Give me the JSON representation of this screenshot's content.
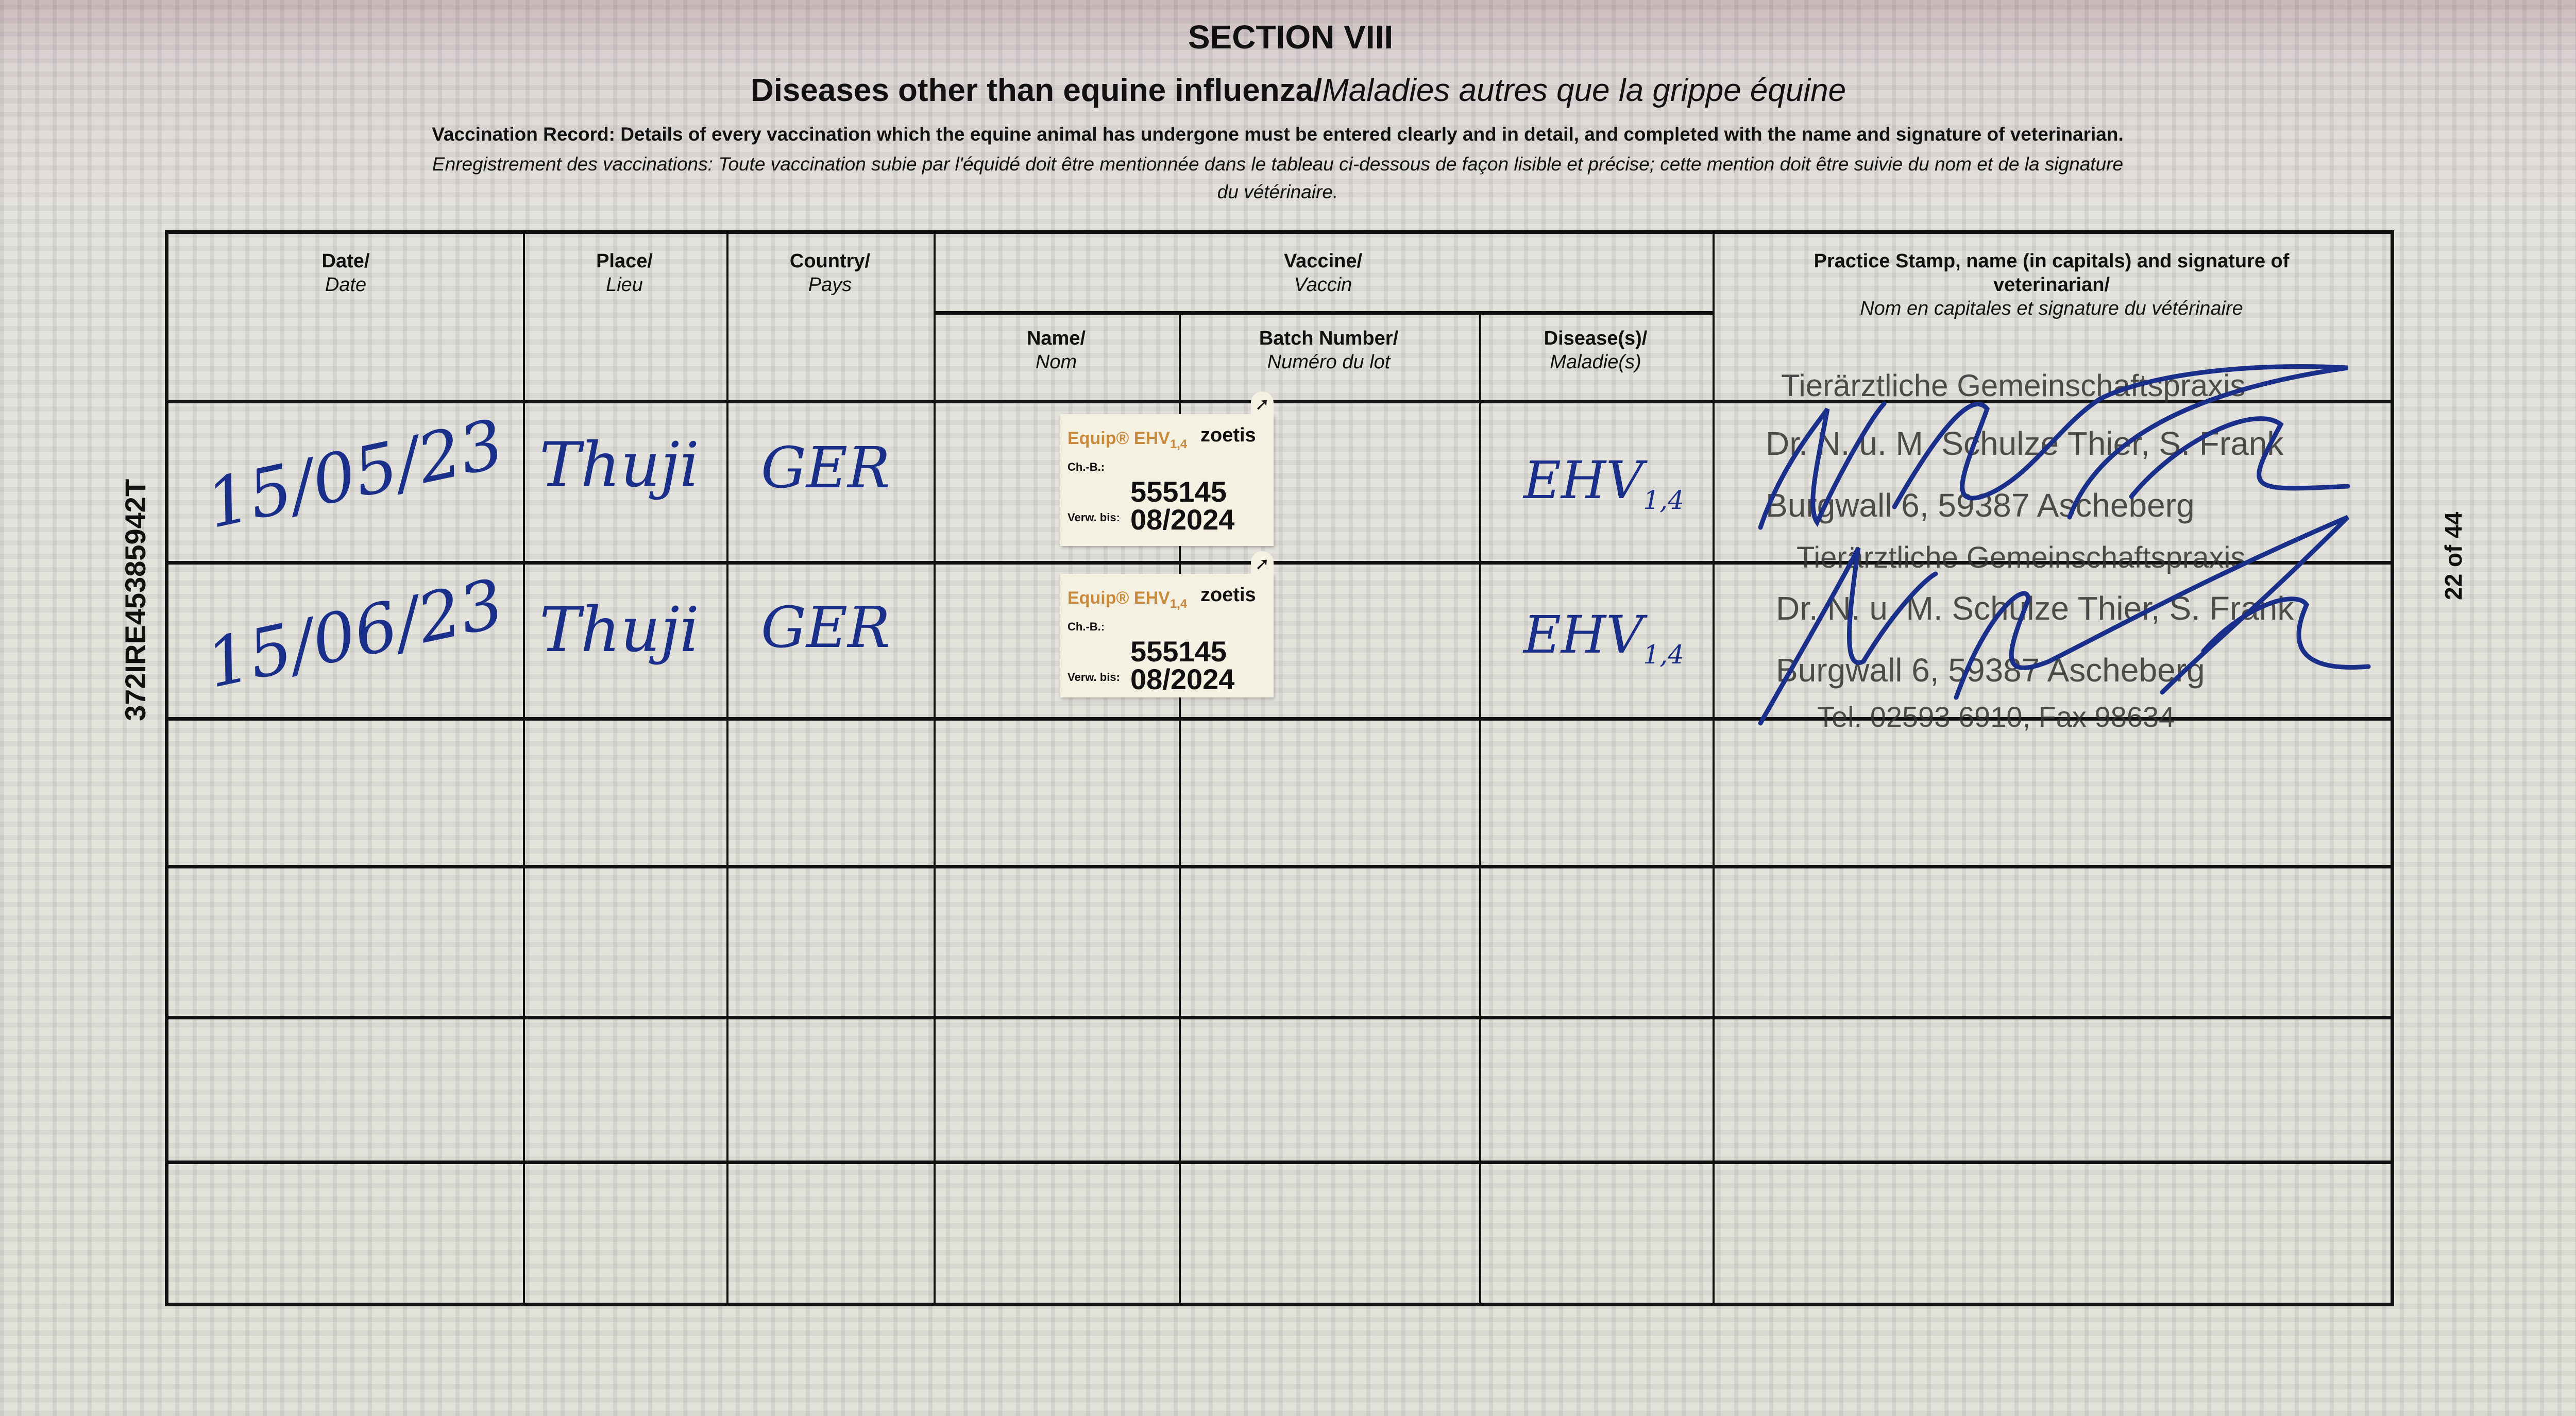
{
  "heading": {
    "section": "SECTION VIII",
    "title_en": "Diseases other than equine influenza/",
    "title_fr": "Maladies autres que la grippe équine",
    "instruction_en": "Vaccination Record: Details of every vaccination which the equine animal has undergone must be entered clearly and in detail, and completed with the name and signature of veterinarian.",
    "instruction_fr_1": "Enregistrement des vaccinations: Toute vaccination subie par l'équidé doit être mentionnée dans le tableau ci-dessous de façon lisible et précise; cette mention doit être suivie du nom et de la signature",
    "instruction_fr_2": "du vétérinaire."
  },
  "side": {
    "passport_number": "372IRE45385942T",
    "page": "22 of 44"
  },
  "columns": {
    "date": {
      "en": "Date/",
      "fr": "Date"
    },
    "place": {
      "en": "Place/",
      "fr": "Lieu"
    },
    "country": {
      "en": "Country/",
      "fr": "Pays"
    },
    "vaccine": {
      "en": "Vaccine/",
      "fr": "Vaccin"
    },
    "name": {
      "en": "Name/",
      "fr": "Nom"
    },
    "batch": {
      "en": "Batch Number/",
      "fr": "Numéro du lot"
    },
    "disease": {
      "en": "Disease(s)/",
      "fr": "Maladie(s)"
    },
    "stamp": {
      "en1": "Practice Stamp, name (in capitals) and signature of",
      "en2": "veterinarian/",
      "fr": "Nom en capitales et signature du vétérinaire"
    }
  },
  "rows": [
    {
      "date": "15/05/23",
      "place": "Thuji",
      "country": "GER",
      "sticker": {
        "product": "Equip® EHV",
        "sub": "1,4",
        "brand": "zoetis",
        "batch_label": "Ch.-B.:",
        "batch": "555145",
        "expiry_label": "Verw. bis:",
        "expiry": "08/2024"
      },
      "disease": "EHV",
      "disease_sub": "1,4",
      "stamp": [
        "Tierärztliche Gemeinschaftspraxis",
        "Dr. N. u. M. Schulze Thier, S. Frank",
        "Burgwall 6, 59387 Ascheberg"
      ]
    },
    {
      "date": "15/06/23",
      "place": "Thuji",
      "country": "GER",
      "sticker": {
        "product": "Equip® EHV",
        "sub": "1,4",
        "brand": "zoetis",
        "batch_label": "Ch.-B.:",
        "batch": "555145",
        "expiry_label": "Verw. bis:",
        "expiry": "08/2024"
      },
      "disease": "EHV",
      "disease_sub": "1,4",
      "stamp": [
        "Tierärztliche Gemeinschaftspraxis",
        "Dr. N. u. M. Schulze Thier, S. Frank",
        "Burgwall 6, 59387 Ascheberg",
        "Tel. 02593 6910, Fax 98634"
      ]
    }
  ],
  "colors": {
    "ink": "#1a2f8a",
    "sticker_brand": "#c8893a",
    "sticker_bg": "#f4f1e2"
  }
}
